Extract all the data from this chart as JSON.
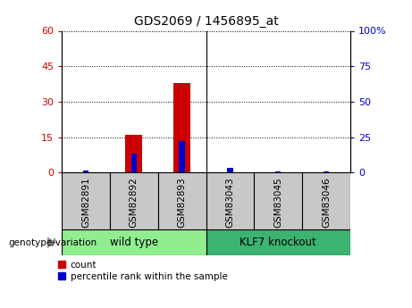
{
  "title": "GDS2069 / 1456895_at",
  "samples": [
    "GSM82891",
    "GSM82892",
    "GSM82893",
    "GSM83043",
    "GSM83045",
    "GSM83046"
  ],
  "count_values": [
    0,
    16,
    38,
    0,
    0,
    0
  ],
  "percentile_values": [
    1.5,
    13.5,
    22,
    3.5,
    0.5,
    0.5
  ],
  "left_ylim": [
    0,
    60
  ],
  "right_ylim": [
    0,
    100
  ],
  "left_yticks": [
    0,
    15,
    30,
    45,
    60
  ],
  "right_yticks": [
    0,
    25,
    50,
    75,
    100
  ],
  "right_yticklabels": [
    "0",
    "25",
    "50",
    "75",
    "100%"
  ],
  "group1_label": "wild type",
  "group2_label": "KLF7 knockout",
  "group1_indices": [
    0,
    1,
    2
  ],
  "group2_indices": [
    3,
    4,
    5
  ],
  "group1_color": "#90EE90",
  "group2_color": "#3CB371",
  "tick_bg_color": "#C8C8C8",
  "count_color": "#CC0000",
  "percentile_color": "#0000CC",
  "legend_count_label": "count",
  "legend_percentile_label": "percentile rank within the sample",
  "genotype_label": "genotype/variation",
  "count_bar_width": 0.35,
  "percentile_bar_width": 0.12,
  "plot_bg_color": "#FFFFFF"
}
